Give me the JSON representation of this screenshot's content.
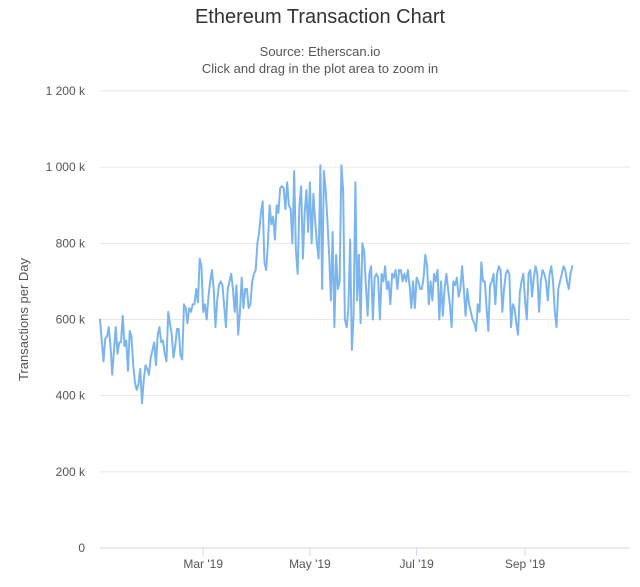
{
  "chart_data": {
    "type": "line",
    "title": "Ethereum Transaction Chart",
    "subtitle": [
      "Source: Etherscan.io",
      "Click and drag in the plot area to zoom in"
    ],
    "xlabel": "",
    "ylabel": "Transactions per Day",
    "ylim": [
      0,
      1200000
    ],
    "y_ticks": [
      {
        "value": 0,
        "label": "0"
      },
      {
        "value": 200000,
        "label": "200 k"
      },
      {
        "value": 400000,
        "label": "400 k"
      },
      {
        "value": 600000,
        "label": "600 k"
      },
      {
        "value": 800000,
        "label": "800 k"
      },
      {
        "value": 1000000,
        "label": "1 000 k"
      },
      {
        "value": 1200000,
        "label": "1 200 k"
      }
    ],
    "xlim": [
      "2019-01-01",
      "2019-10-31"
    ],
    "x_ticks": [
      {
        "date": "2019-03-01",
        "label": "Mar '19"
      },
      {
        "date": "2019-05-01",
        "label": "May '19"
      },
      {
        "date": "2019-07-01",
        "label": "Jul '19"
      },
      {
        "date": "2019-09-01",
        "label": "Sep '19"
      }
    ],
    "grid": true,
    "legend": "none",
    "colors": {
      "line": "#7cb5ec",
      "grid": "#e6e6e6",
      "axis": "#ccd6eb"
    },
    "series": [
      {
        "x_start": "2019-01-01",
        "step_days": 1,
        "values": [
          600000,
          545000,
          490000,
          550000,
          555000,
          580000,
          530000,
          455000,
          520000,
          580000,
          510000,
          540000,
          540000,
          610000,
          530000,
          545000,
          465000,
          570000,
          555000,
          480000,
          435000,
          415000,
          430000,
          470000,
          380000,
          440000,
          480000,
          470000,
          455000,
          500000,
          520000,
          540000,
          480000,
          560000,
          580000,
          540000,
          545000,
          510000,
          490000,
          620000,
          590000,
          560000,
          500000,
          530000,
          575000,
          575000,
          505000,
          495000,
          640000,
          630000,
          590000,
          630000,
          620000,
          640000,
          640000,
          680000,
          645000,
          760000,
          740000,
          620000,
          640000,
          600000,
          660000,
          700000,
          730000,
          680000,
          580000,
          650000,
          690000,
          700000,
          690000,
          635000,
          580000,
          680000,
          700000,
          720000,
          680000,
          620000,
          690000,
          560000,
          620000,
          710000,
          630000,
          680000,
          680000,
          630000,
          640000,
          700000,
          720000,
          730000,
          800000,
          830000,
          880000,
          910000,
          750000,
          730000,
          800000,
          900000,
          850000,
          870000,
          810000,
          900000,
          880000,
          945000,
          950000,
          945000,
          890000,
          960000,
          900000,
          890000,
          800000,
          990000,
          780000,
          720000,
          900000,
          950000,
          760000,
          880000,
          940000,
          830000,
          960000,
          800000,
          930000,
          860000,
          800000,
          760000,
          1005000,
          680000,
          990000,
          940000,
          860000,
          770000,
          650000,
          830000,
          580000,
          770000,
          680000,
          700000,
          1005000,
          940000,
          600000,
          580000,
          630000,
          810000,
          520000,
          610000,
          960000,
          650000,
          770000,
          590000,
          800000,
          780000,
          690000,
          610000,
          720000,
          740000,
          600000,
          710000,
          720000,
          710000,
          600000,
          720000,
          700000,
          740000,
          680000,
          700000,
          640000,
          720000,
          710000,
          730000,
          680000,
          730000,
          730000,
          700000,
          720000,
          700000,
          730000,
          690000,
          630000,
          700000,
          630000,
          710000,
          700000,
          680000,
          680000,
          710000,
          770000,
          740000,
          640000,
          700000,
          650000,
          720000,
          700000,
          730000,
          600000,
          700000,
          610000,
          680000,
          720000,
          680000,
          640000,
          580000,
          700000,
          690000,
          710000,
          660000,
          680000,
          740000,
          680000,
          610000,
          680000,
          640000,
          620000,
          600000,
          590000,
          570000,
          640000,
          620000,
          750000,
          700000,
          700000,
          630000,
          570000,
          690000,
          700000,
          720000,
          640000,
          720000,
          740000,
          730000,
          620000,
          680000,
          720000,
          730000,
          720000,
          580000,
          640000,
          630000,
          590000,
          560000,
          670000,
          700000,
          720000,
          650000,
          600000,
          720000,
          730000,
          660000,
          710000,
          740000,
          720000,
          620000,
          700000,
          730000,
          720000,
          700000,
          650000,
          720000,
          740000,
          700000,
          620000,
          580000,
          680000,
          700000,
          720000,
          740000,
          730000,
          700000,
          680000,
          720000,
          740000
        ]
      }
    ]
  }
}
